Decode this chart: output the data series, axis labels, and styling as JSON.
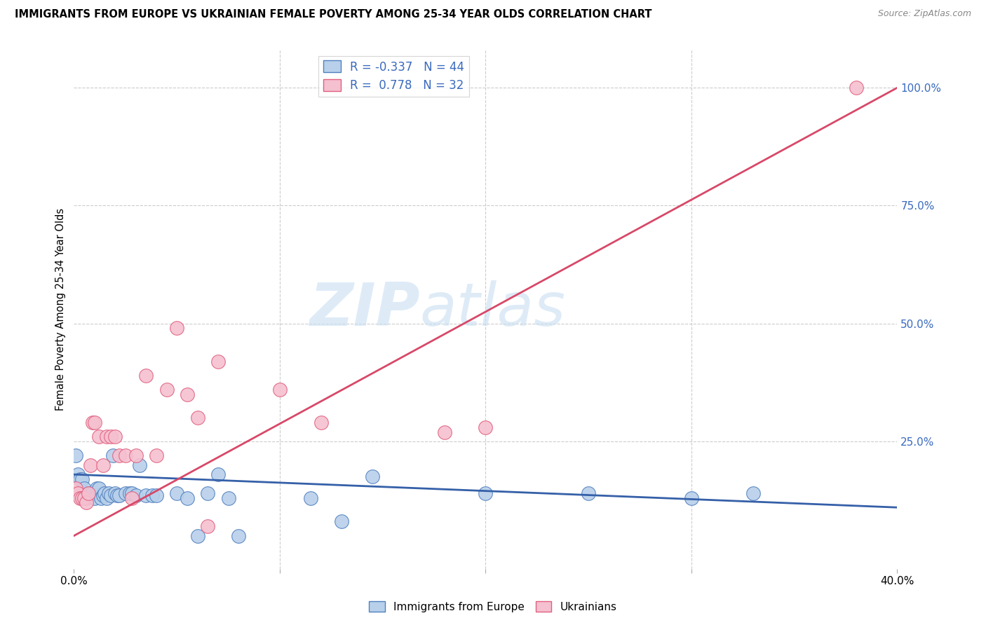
{
  "title": "IMMIGRANTS FROM EUROPE VS UKRAINIAN FEMALE POVERTY AMONG 25-34 YEAR OLDS CORRELATION CHART",
  "source": "Source: ZipAtlas.com",
  "ylabel": "Female Poverty Among 25-34 Year Olds",
  "watermark_zip": "ZIP",
  "watermark_atlas": "atlas",
  "legend_label_blue": "Immigrants from Europe",
  "legend_label_pink": "Ukrainians",
  "r_blue": "-0.337",
  "n_blue": "44",
  "r_pink": "0.778",
  "n_pink": "32",
  "blue_fill": "#b8d0ea",
  "pink_fill": "#f5c0d0",
  "blue_edge": "#5080c0",
  "pink_edge": "#e06080",
  "blue_line": "#3560a8",
  "pink_line": "#d84868",
  "right_ytick_labels": [
    "100.0%",
    "75.0%",
    "50.0%",
    "25.0%"
  ],
  "right_ytick_values": [
    100,
    75,
    50,
    25
  ],
  "xlim": [
    0.0,
    40.0
  ],
  "ylim": [
    -2,
    108
  ],
  "blue_trend_x": [
    0.0,
    40.0
  ],
  "blue_trend_y": [
    18.0,
    11.0
  ],
  "pink_trend_x": [
    0.0,
    40.0
  ],
  "pink_trend_y": [
    5.0,
    100.0
  ],
  "blue_scatter": [
    [
      0.1,
      22
    ],
    [
      0.2,
      18
    ],
    [
      0.3,
      17
    ],
    [
      0.4,
      17
    ],
    [
      0.5,
      15
    ],
    [
      0.6,
      13
    ],
    [
      0.7,
      14
    ],
    [
      0.8,
      14
    ],
    [
      0.9,
      14
    ],
    [
      1.0,
      13
    ],
    [
      1.1,
      15
    ],
    [
      1.2,
      15
    ],
    [
      1.3,
      13
    ],
    [
      1.4,
      13.5
    ],
    [
      1.5,
      14
    ],
    [
      1.6,
      13
    ],
    [
      1.7,
      14
    ],
    [
      1.8,
      13.5
    ],
    [
      1.9,
      22
    ],
    [
      2.0,
      14
    ],
    [
      2.1,
      13.5
    ],
    [
      2.2,
      13.5
    ],
    [
      2.5,
      14
    ],
    [
      2.7,
      14
    ],
    [
      2.8,
      14
    ],
    [
      3.0,
      13.5
    ],
    [
      3.2,
      20
    ],
    [
      3.5,
      13.5
    ],
    [
      3.8,
      13.5
    ],
    [
      4.0,
      13.5
    ],
    [
      5.0,
      14
    ],
    [
      5.5,
      13
    ],
    [
      6.5,
      14
    ],
    [
      7.0,
      18
    ],
    [
      7.5,
      13
    ],
    [
      8.0,
      5
    ],
    [
      11.5,
      13
    ],
    [
      13.0,
      8
    ],
    [
      14.5,
      17.5
    ],
    [
      20.0,
      14
    ],
    [
      25.0,
      14
    ],
    [
      30.0,
      13
    ],
    [
      33.0,
      14
    ],
    [
      6.0,
      5
    ]
  ],
  "pink_scatter": [
    [
      0.1,
      15
    ],
    [
      0.2,
      14
    ],
    [
      0.3,
      13
    ],
    [
      0.4,
      13
    ],
    [
      0.5,
      13
    ],
    [
      0.6,
      12
    ],
    [
      0.7,
      14
    ],
    [
      0.8,
      20
    ],
    [
      0.9,
      29
    ],
    [
      1.0,
      29
    ],
    [
      1.2,
      26
    ],
    [
      1.4,
      20
    ],
    [
      1.6,
      26
    ],
    [
      1.8,
      26
    ],
    [
      2.0,
      26
    ],
    [
      2.2,
      22
    ],
    [
      2.5,
      22
    ],
    [
      2.8,
      13
    ],
    [
      3.0,
      22
    ],
    [
      3.5,
      39
    ],
    [
      4.0,
      22
    ],
    [
      4.5,
      36
    ],
    [
      5.0,
      49
    ],
    [
      5.5,
      35
    ],
    [
      6.0,
      30
    ],
    [
      6.5,
      7
    ],
    [
      7.0,
      42
    ],
    [
      10.0,
      36
    ],
    [
      12.0,
      29
    ],
    [
      18.0,
      27
    ],
    [
      20.0,
      28
    ],
    [
      38.0,
      100
    ]
  ]
}
